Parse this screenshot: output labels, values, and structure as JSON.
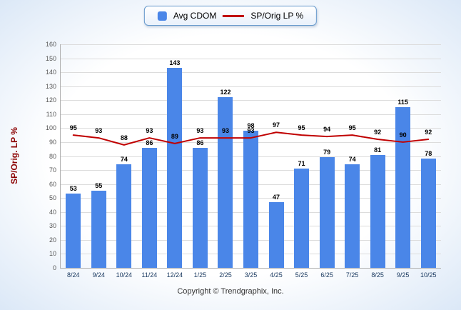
{
  "legend": {
    "bar_label": "Avg CDOM",
    "line_label": "SP/Orig LP %"
  },
  "footer": {
    "copyright": "Copyright © Trendgraphix, Inc."
  },
  "colors": {
    "bar": "#4a86e8",
    "line": "#c00000",
    "ylabel": "#8b0000",
    "background_edge": "#cfe0f4"
  },
  "chart_data": {
    "type": "bar",
    "title": "",
    "xlabel": "",
    "ylabel": "SP/Orig. LP %",
    "ylim": [
      0,
      160
    ],
    "ytick_step": 10,
    "grid": true,
    "legend_position": "top-center",
    "categories": [
      "8/24",
      "9/24",
      "10/24",
      "11/24",
      "12/24",
      "1/25",
      "2/25",
      "3/25",
      "4/25",
      "5/25",
      "6/25",
      "7/25",
      "8/25",
      "9/25",
      "10/25"
    ],
    "series": [
      {
        "name": "Avg CDOM",
        "type": "bar",
        "color": "#4a86e8",
        "values": [
          53,
          55,
          74,
          86,
          143,
          86,
          122,
          98,
          47,
          71,
          79,
          74,
          81,
          115,
          78
        ]
      },
      {
        "name": "SP/Orig LP %",
        "type": "line",
        "color": "#c00000",
        "values": [
          95,
          93,
          88,
          93,
          89,
          93,
          93,
          93,
          97,
          95,
          94,
          95,
          92,
          90,
          92
        ]
      }
    ]
  }
}
